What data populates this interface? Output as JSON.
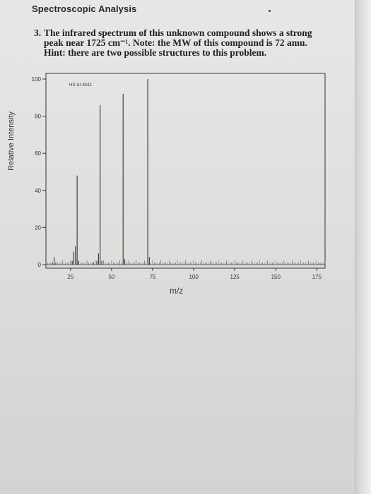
{
  "page": {
    "header": "Spectroscopic Analysis",
    "question_number": "3.",
    "question_text": "The infrared spectrum of this unknown compound shows a strong peak near 1725 cm⁻¹. Note: the MW of this compound is 72 amu. Hint: there are two possible structures to this problem."
  },
  "chart_data": {
    "type": "bar",
    "title": "",
    "annotation": "HS-IU-3442",
    "xlabel": "m/z",
    "ylabel": "Relative Intensity",
    "xlim": [
      10,
      180
    ],
    "ylim": [
      0,
      100
    ],
    "x_ticks": [
      25,
      50,
      75,
      100,
      125,
      150,
      175
    ],
    "y_ticks": [
      0,
      20,
      40,
      60,
      80,
      100
    ],
    "grid": false,
    "peaks": [
      {
        "x": 14,
        "y": 1
      },
      {
        "x": 15,
        "y": 4
      },
      {
        "x": 16,
        "y": 1
      },
      {
        "x": 26,
        "y": 2
      },
      {
        "x": 27,
        "y": 7
      },
      {
        "x": 28,
        "y": 10
      },
      {
        "x": 29,
        "y": 48
      },
      {
        "x": 30,
        "y": 2
      },
      {
        "x": 39,
        "y": 1
      },
      {
        "x": 41,
        "y": 2
      },
      {
        "x": 42,
        "y": 6
      },
      {
        "x": 43,
        "y": 86
      },
      {
        "x": 44,
        "y": 2
      },
      {
        "x": 57,
        "y": 92
      },
      {
        "x": 58,
        "y": 3
      },
      {
        "x": 72,
        "y": 100
      },
      {
        "x": 73,
        "y": 4
      }
    ]
  }
}
